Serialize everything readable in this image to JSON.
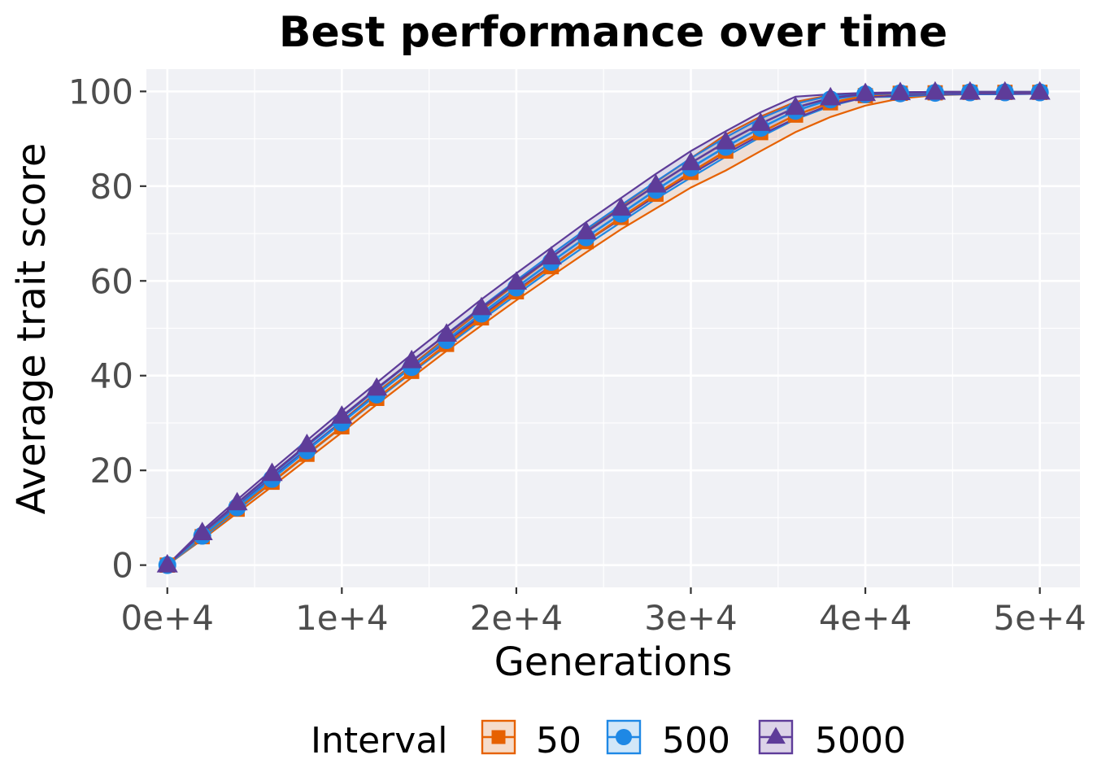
{
  "chart_data": {
    "type": "line",
    "title": "Best performance over time",
    "xlabel": "Generations",
    "ylabel": "Average trait score",
    "xlim": [
      -1200,
      52300
    ],
    "ylim": [
      -4.7,
      104.7
    ],
    "x_ticks": [
      {
        "value": 0,
        "label": "0e+4"
      },
      {
        "value": 10000,
        "label": "1e+4"
      },
      {
        "value": 20000,
        "label": "2e+4"
      },
      {
        "value": 30000,
        "label": "3e+4"
      },
      {
        "value": 40000,
        "label": "4e+4"
      },
      {
        "value": 50000,
        "label": "5e+4"
      }
    ],
    "y_ticks": [
      {
        "value": 0,
        "label": "0"
      },
      {
        "value": 20,
        "label": "20"
      },
      {
        "value": 40,
        "label": "40"
      },
      {
        "value": 60,
        "label": "60"
      },
      {
        "value": 80,
        "label": "80"
      },
      {
        "value": 100,
        "label": "100"
      }
    ],
    "grid": true,
    "legend_position": "bottom",
    "legend_title": "Interval",
    "x": [
      0,
      2000,
      4000,
      6000,
      8000,
      10000,
      12000,
      14000,
      16000,
      18000,
      20000,
      22000,
      24000,
      26000,
      28000,
      30000,
      32000,
      34000,
      36000,
      38000,
      40000,
      42000,
      44000,
      46000,
      48000,
      50000
    ],
    "series": [
      {
        "name": "50",
        "marker": "square",
        "color": "#e66101",
        "fill": "#f5dccb",
        "values": [
          0,
          6.0,
          11.8,
          17.5,
          23.4,
          29.2,
          35.2,
          40.9,
          46.6,
          52.2,
          57.7,
          63.0,
          68.3,
          73.4,
          78.3,
          82.9,
          87.4,
          91.3,
          95.0,
          97.6,
          99.1,
          99.6,
          99.7,
          99.8,
          99.8,
          99.8
        ],
        "lower": [
          0,
          5.4,
          11.0,
          16.6,
          22.3,
          28.0,
          33.9,
          39.6,
          45.2,
          50.6,
          55.9,
          61.0,
          66.0,
          70.9,
          75.3,
          79.7,
          83.3,
          87.4,
          91.4,
          94.6,
          97.0,
          98.5,
          99.2,
          99.4,
          99.5,
          99.5
        ],
        "upper": [
          0,
          6.6,
          12.6,
          18.4,
          24.4,
          30.4,
          36.5,
          42.2,
          48.1,
          53.8,
          59.4,
          64.9,
          70.5,
          75.8,
          80.9,
          85.9,
          90.9,
          94.7,
          97.8,
          99.2,
          99.6,
          99.8,
          99.9,
          99.9,
          99.9,
          99.9
        ]
      },
      {
        "name": "500",
        "marker": "circle",
        "color": "#1e88e5",
        "fill": "#d2e7f8",
        "values": [
          0,
          6.2,
          12.2,
          18.2,
          24.2,
          30.1,
          36.0,
          41.8,
          47.5,
          53.1,
          58.6,
          64.0,
          69.2,
          74.2,
          79.2,
          83.9,
          88.3,
          92.3,
          95.9,
          98.3,
          99.4,
          99.6,
          99.7,
          99.8,
          99.8,
          99.8
        ],
        "lower": [
          0,
          5.6,
          11.5,
          17.4,
          23.3,
          29.1,
          34.9,
          40.6,
          46.2,
          51.7,
          57.1,
          62.4,
          67.5,
          72.4,
          77.3,
          81.8,
          86.2,
          90.4,
          94.1,
          96.9,
          98.8,
          98.9,
          99.3,
          99.4,
          99.4,
          99.5
        ],
        "upper": [
          0,
          6.8,
          12.9,
          19.0,
          25.1,
          31.1,
          37.1,
          43.0,
          48.8,
          54.5,
          60.1,
          65.6,
          70.9,
          76.0,
          81.0,
          85.9,
          90.3,
          94.3,
          97.4,
          99.1,
          99.6,
          99.8,
          99.9,
          99.9,
          99.9,
          99.9
        ]
      },
      {
        "name": "5000",
        "marker": "triangle",
        "color": "#5e3c99",
        "fill": "#dcd3e8",
        "values": [
          0,
          6.8,
          13.1,
          19.3,
          25.4,
          31.4,
          37.3,
          43.1,
          48.7,
          54.3,
          59.7,
          65.0,
          70.3,
          75.3,
          80.2,
          84.9,
          89.3,
          93.2,
          96.6,
          98.6,
          99.5,
          99.7,
          99.8,
          99.8,
          99.8,
          99.8
        ],
        "lower": [
          0,
          6.2,
          12.4,
          18.5,
          24.5,
          30.3,
          36.1,
          41.7,
          47.2,
          52.6,
          58.0,
          63.2,
          68.3,
          73.1,
          77.9,
          82.5,
          86.8,
          90.8,
          94.3,
          97.2,
          98.7,
          99.2,
          99.4,
          99.5,
          99.5,
          99.5
        ],
        "upper": [
          0,
          7.3,
          13.8,
          20.1,
          26.3,
          32.5,
          38.5,
          44.5,
          50.3,
          56.1,
          61.6,
          67.0,
          72.4,
          77.5,
          82.6,
          87.4,
          91.6,
          95.6,
          98.9,
          99.4,
          99.7,
          99.8,
          99.9,
          99.9,
          99.9,
          99.9
        ]
      }
    ]
  }
}
